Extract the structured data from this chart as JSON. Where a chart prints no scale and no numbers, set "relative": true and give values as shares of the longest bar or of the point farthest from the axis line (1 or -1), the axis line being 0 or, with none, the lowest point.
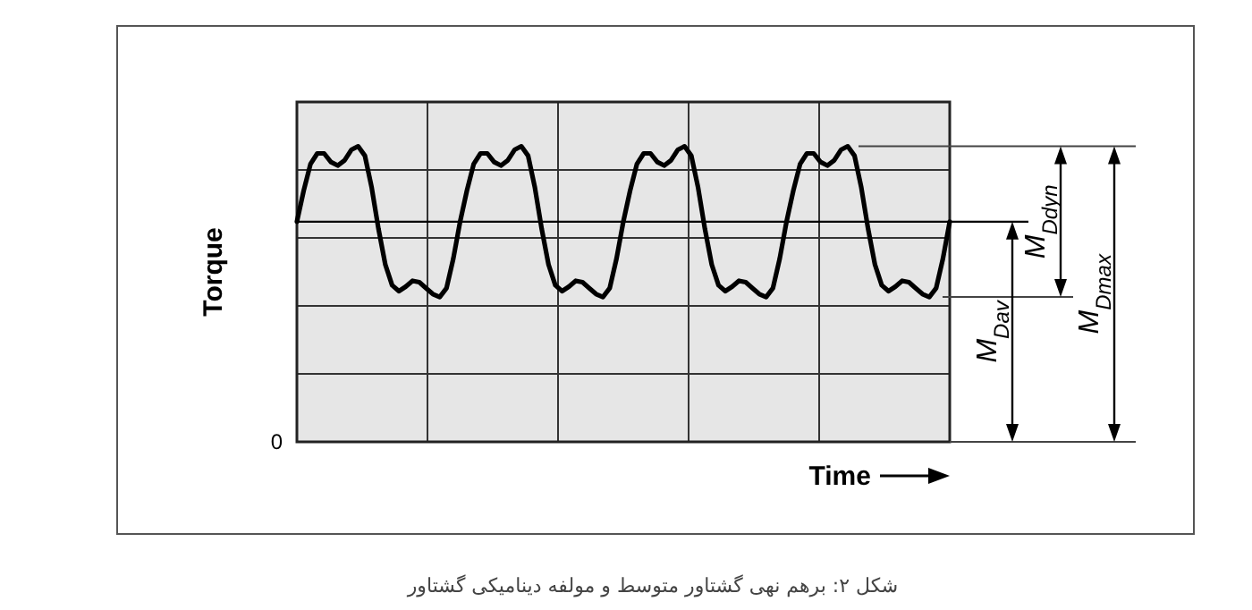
{
  "chart_data": {
    "type": "line",
    "relative": true,
    "xlabel": "Time",
    "ylabel": "Torque",
    "grid": true,
    "color": "#000000",
    "categories": [
      null,
      null,
      null,
      null,
      null,
      null,
      null,
      null,
      null,
      null,
      null,
      null,
      null,
      null,
      null,
      null,
      null,
      null,
      null,
      null,
      null,
      null,
      null,
      null,
      null,
      null,
      null,
      null,
      null,
      null,
      null,
      null,
      null,
      null,
      null,
      null,
      null,
      null,
      null,
      null,
      null,
      null,
      null,
      null,
      null,
      null,
      null,
      null,
      null,
      null,
      null,
      null,
      null,
      null,
      null,
      null,
      null,
      null,
      null,
      null,
      null,
      null,
      null,
      null,
      null,
      null,
      null,
      null,
      null,
      null,
      null,
      null,
      null,
      null,
      null,
      null,
      null,
      null,
      null,
      null,
      null,
      null,
      null,
      null,
      null,
      null,
      null,
      null,
      null,
      null,
      null,
      null,
      null,
      null,
      null,
      null,
      null
    ],
    "values": [
      0.745,
      0.85,
      0.94,
      0.976,
      0.976,
      0.947,
      0.935,
      0.952,
      0.988,
      1.0,
      0.968,
      0.86,
      0.72,
      0.6,
      0.53,
      0.51,
      0.525,
      0.545,
      0.54,
      0.52,
      0.5,
      0.49,
      0.52,
      0.62,
      0.745,
      0.85,
      0.94,
      0.976,
      0.976,
      0.947,
      0.935,
      0.952,
      0.988,
      1.0,
      0.968,
      0.86,
      0.72,
      0.6,
      0.53,
      0.51,
      0.525,
      0.545,
      0.54,
      0.52,
      0.5,
      0.49,
      0.52,
      0.62,
      0.745,
      0.85,
      0.94,
      0.976,
      0.976,
      0.947,
      0.935,
      0.952,
      0.988,
      1.0,
      0.968,
      0.86,
      0.72,
      0.6,
      0.53,
      0.51,
      0.525,
      0.545,
      0.54,
      0.52,
      0.5,
      0.49,
      0.52,
      0.62,
      0.745,
      0.85,
      0.94,
      0.976,
      0.976,
      0.947,
      0.935,
      0.952,
      0.988,
      1.0,
      0.968,
      0.86,
      0.72,
      0.6,
      0.53,
      0.51,
      0.525,
      0.545,
      0.54,
      0.52,
      0.5,
      0.49,
      0.52,
      0.62,
      0.745
    ],
    "ref_lines": [
      {
        "axis": "y",
        "value": 0.745
      }
    ],
    "annotations": [
      "M$_{Dav}$",
      "M$_{Ddyn}$",
      "M$_{Dmax}$",
      "شکل ۲: برهم نهی گشتاور متوسط و مولفه دینامیکی گشتاور",
      "0"
    ]
  }
}
